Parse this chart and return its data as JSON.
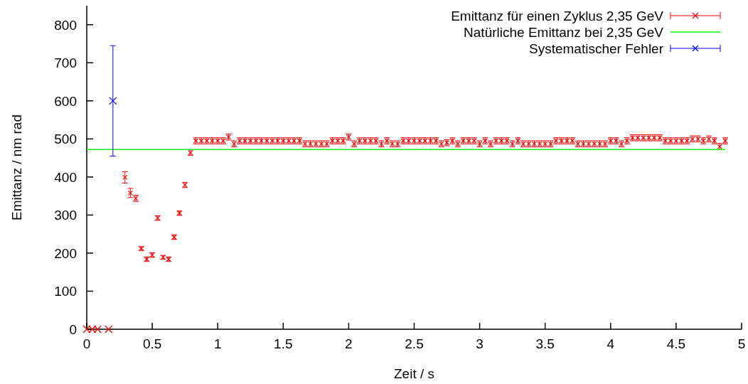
{
  "chart_data": {
    "type": "scatter",
    "xlabel": "Zeit / s",
    "ylabel": "Emittanz / nm rad",
    "xlim": [
      0,
      5
    ],
    "ylim": [
      0,
      850
    ],
    "xticks": [
      0,
      0.5,
      1,
      1.5,
      2,
      2.5,
      3,
      3.5,
      4,
      4.5,
      5
    ],
    "yticks": [
      0,
      100,
      200,
      300,
      400,
      500,
      600,
      700,
      800
    ],
    "grid": false,
    "legend": "top right",
    "series": [
      {
        "name": "Emittanz für einen Zyklus 2,35 GeV",
        "color": "#ff0000",
        "marker": "cross",
        "x": [
          0,
          0.042,
          0.083,
          0.167,
          0.292,
          0.333,
          0.375,
          0.417,
          0.458,
          0.5,
          0.542,
          0.583,
          0.625,
          0.667,
          0.708,
          0.75,
          0.792,
          0.833,
          0.875,
          0.917,
          0.958,
          1,
          1.042,
          1.083,
          1.125,
          1.167,
          1.208,
          1.25,
          1.292,
          1.333,
          1.375,
          1.417,
          1.458,
          1.5,
          1.542,
          1.583,
          1.625,
          1.667,
          1.708,
          1.75,
          1.792,
          1.833,
          1.875,
          1.917,
          1.958,
          2,
          2.042,
          2.083,
          2.125,
          2.167,
          2.208,
          2.25,
          2.292,
          2.333,
          2.375,
          2.417,
          2.458,
          2.5,
          2.542,
          2.583,
          2.625,
          2.667,
          2.708,
          2.75,
          2.792,
          2.833,
          2.875,
          2.917,
          2.958,
          3,
          3.042,
          3.083,
          3.125,
          3.167,
          3.208,
          3.25,
          3.292,
          3.333,
          3.375,
          3.417,
          3.458,
          3.5,
          3.542,
          3.583,
          3.625,
          3.667,
          3.708,
          3.75,
          3.792,
          3.833,
          3.875,
          3.917,
          3.958,
          4,
          4.042,
          4.083,
          4.125,
          4.167,
          4.208,
          4.25,
          4.292,
          4.333,
          4.375,
          4.417,
          4.458,
          4.5,
          4.542,
          4.583,
          4.625,
          4.667,
          4.708,
          4.75,
          4.792,
          4.833,
          4.875
        ],
        "values": [
          0,
          0,
          0,
          0,
          399,
          358,
          344,
          212,
          184,
          195,
          292,
          189,
          184,
          242,
          305,
          379,
          464,
          495,
          495,
          495,
          495,
          495,
          495,
          505,
          487,
          495,
          495,
          495,
          495,
          495,
          495,
          495,
          495,
          495,
          495,
          495,
          495,
          487,
          487,
          487,
          487,
          487,
          495,
          495,
          495,
          505,
          487,
          495,
          495,
          495,
          495,
          487,
          495,
          487,
          487,
          495,
          495,
          495,
          495,
          495,
          495,
          495,
          487,
          490,
          495,
          487,
          495,
          495,
          495,
          487,
          495,
          487,
          495,
          495,
          495,
          487,
          495,
          487,
          487,
          487,
          487,
          487,
          487,
          495,
          495,
          495,
          495,
          487,
          487,
          487,
          487,
          487,
          487,
          495,
          495,
          487,
          495,
          503,
          503,
          503,
          503,
          503,
          503,
          495,
          495,
          495,
          495,
          495,
          500,
          500,
          495,
          500,
          495,
          480,
          495
        ],
        "errors": [
          null,
          null,
          null,
          null,
          15,
          12,
          8,
          5,
          6,
          6,
          6,
          5,
          6,
          6,
          6,
          7,
          7,
          8,
          8,
          8,
          8,
          8,
          8,
          8,
          8,
          8,
          8,
          8,
          8,
          8,
          8,
          8,
          8,
          8,
          8,
          8,
          8,
          8,
          8,
          8,
          8,
          8,
          8,
          8,
          8,
          8,
          8,
          8,
          8,
          8,
          8,
          8,
          8,
          8,
          8,
          8,
          8,
          8,
          8,
          8,
          8,
          8,
          8,
          8,
          8,
          8,
          8,
          8,
          8,
          8,
          8,
          8,
          8,
          8,
          8,
          8,
          8,
          8,
          8,
          8,
          8,
          8,
          8,
          8,
          8,
          8,
          8,
          8,
          8,
          8,
          8,
          8,
          8,
          8,
          8,
          8,
          8,
          8,
          8,
          8,
          8,
          8,
          8,
          8,
          8,
          8,
          8,
          8,
          8,
          8,
          8,
          8,
          8,
          8,
          8
        ]
      },
      {
        "name": "Natürliche Emittanz bei 2,35 GeV",
        "color": "#00ff00",
        "type": "line",
        "marker": "none",
        "x": [
          0,
          4.875
        ],
        "values": [
          472,
          472
        ]
      },
      {
        "name": "Systematischer Fehler",
        "color": "#0000ff",
        "marker": "cross",
        "x": [
          0.2
        ],
        "values": [
          600
        ],
        "errors": [
          [
            455,
            745
          ]
        ]
      }
    ]
  }
}
